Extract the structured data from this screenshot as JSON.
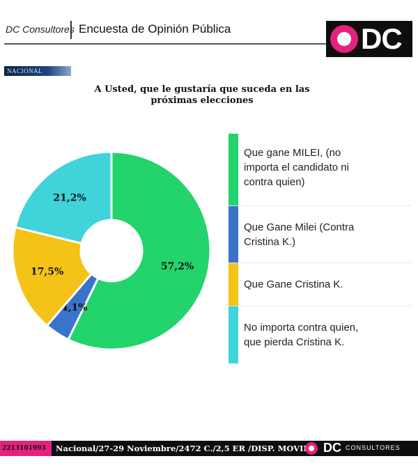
{
  "header": {
    "brand": "DC Consultores",
    "title": "Encuesta de Opinión Pública",
    "logo_text": "DC"
  },
  "section_badge": "NACIONAL",
  "question_lines": [
    "A Usted, que le gustaría que suceda en las",
    "próximas elecciones"
  ],
  "chart_data": {
    "type": "pie",
    "title": "A Usted, que le gustaría que suceda en las próximas elecciones",
    "donut": true,
    "legend_position": "right",
    "slices": [
      {
        "label": "Que gane MILEI, (no importa el candidato ni contra quien)",
        "value": 57.2,
        "display": "57,2%",
        "color": "#22d46b"
      },
      {
        "label": "Que Gane Milei (Contra Cristina K.)",
        "value": 4.1,
        "display": "4,1%",
        "color": "#3a74c9"
      },
      {
        "label": "Que Gane Cristina K.",
        "value": 17.5,
        "display": "17,5%",
        "color": "#f5c318"
      },
      {
        "label": "No importa contra quien, que pierda Cristina K.",
        "value": 21.2,
        "display": "21,2%",
        "color": "#3fd3da"
      }
    ]
  },
  "legend": [
    {
      "lines": [
        "Que gane MILEI, (no",
        "importa el candidato ni",
        "contra quien)"
      ],
      "color": "#22d46b"
    },
    {
      "lines": [
        "Que Gane Milei (Contra",
        "Cristina K.)"
      ],
      "color": "#3a74c9"
    },
    {
      "lines": [
        "Que Gane Cristina K."
      ],
      "color": "#f5c318"
    },
    {
      "lines": [
        "No importa contra quien,",
        "que pierda Cristina K."
      ],
      "color": "#3fd3da"
    }
  ],
  "footer": {
    "phone": "2213101993",
    "info": "Nacional/27-29 Noviembre/2472 C./2,5 ER /DISP. MOVIL",
    "logo_text": "DC",
    "logo_sub": "CONSULTORES"
  }
}
